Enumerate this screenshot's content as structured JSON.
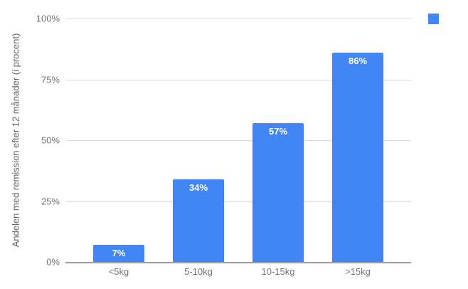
{
  "chart_data": {
    "type": "bar",
    "title": "",
    "xlabel": "",
    "ylabel": "Andelen med remission efter 12 månader (i procent)",
    "categories": [
      "<5kg",
      "5-10kg",
      "10-15kg",
      ">15kg"
    ],
    "values": [
      7,
      34,
      57,
      86
    ],
    "data_labels": [
      "7%",
      "34%",
      "57%",
      "86%"
    ],
    "ylim": [
      0,
      100
    ],
    "yticks": [
      0,
      25,
      50,
      75,
      100
    ],
    "ytick_labels": [
      "0%",
      "25%",
      "50%",
      "75%",
      "100%"
    ],
    "grid": true,
    "legend_position": "top-right",
    "legend_items": [
      {
        "label": "",
        "color": "#4285f4"
      }
    ]
  },
  "colors": {
    "bar": "#4285f4",
    "bar_label": "#ffffff",
    "gridline": "#d9d9d9",
    "axis_line": "#9e9e9e",
    "tick_text": "#757575",
    "axis_title_text": "#616161",
    "background": "#ffffff"
  }
}
